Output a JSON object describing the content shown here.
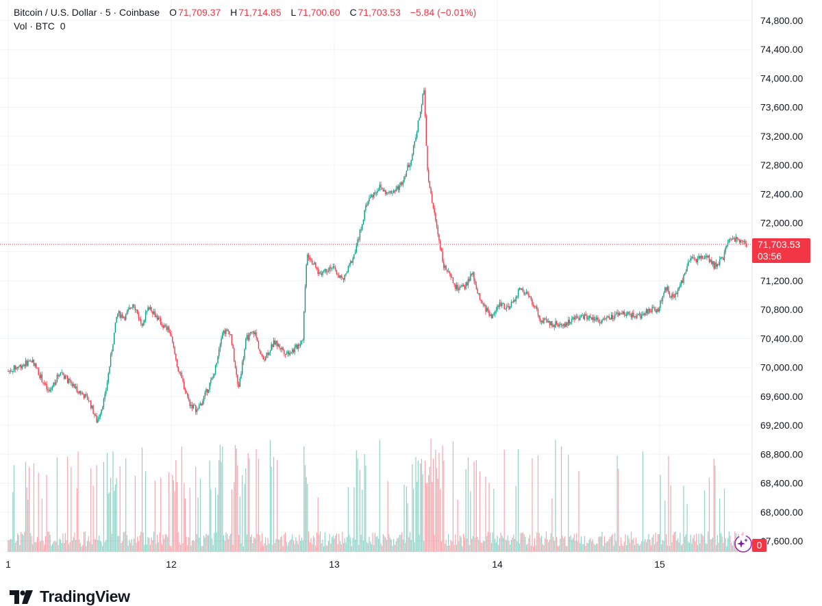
{
  "legend": {
    "symbol": "Bitcoin / U.S. Dollar · 5 · Coinbase",
    "open_label": "O",
    "open": "71,709.37",
    "high_label": "H",
    "high": "71,714.85",
    "low_label": "L",
    "low": "71,700.60",
    "close_label": "C",
    "close": "71,703.53",
    "change": "−5.84 (−0.01%)",
    "volume_label": "Vol · BTC",
    "volume_value": "0"
  },
  "price_badge": {
    "price": "71,703.53",
    "countdown": "03:56"
  },
  "volume_badge": "0",
  "branding": {
    "name": "TradingView",
    "logo_icon": "tradingview-logo-icon"
  },
  "colors": {
    "up": "#089981",
    "down": "#F23645",
    "grid": "#F0F3FA",
    "text": "#131722"
  },
  "chart_data": {
    "type": "candlestick",
    "title": "Bitcoin / U.S. Dollar · 5 · Coinbase",
    "y_ticks": [
      "74,800.00",
      "74,400.00",
      "74,000.00",
      "73,600.00",
      "73,200.00",
      "72,800.00",
      "72,400.00",
      "72,000.00",
      "71,600.00",
      "71,200.00",
      "70,800.00",
      "70,400.00",
      "70,000.00",
      "69,600.00",
      "69,200.00",
      "68,800.00",
      "68,400.00",
      "68,000.00",
      "67,600.00"
    ],
    "x_ticks": [
      "1",
      "12",
      "13",
      "14",
      "15"
    ],
    "ylim": [
      67600,
      74800
    ],
    "last_price": 71703.53,
    "approx_close_path": [
      [
        0,
        69950
      ],
      [
        0.3,
        70100
      ],
      [
        0.5,
        69650
      ],
      [
        0.65,
        69950
      ],
      [
        0.75,
        69800
      ],
      [
        1.0,
        69550
      ],
      [
        1.1,
        69250
      ],
      [
        1.2,
        69600
      ],
      [
        1.35,
        70750
      ],
      [
        1.45,
        70700
      ],
      [
        1.55,
        70900
      ],
      [
        1.65,
        70600
      ],
      [
        1.75,
        70850
      ],
      [
        1.9,
        70600
      ],
      [
        2.0,
        70500
      ],
      [
        2.1,
        70000
      ],
      [
        2.25,
        69500
      ],
      [
        2.35,
        69400
      ],
      [
        2.55,
        69900
      ],
      [
        2.65,
        70500
      ],
      [
        2.75,
        70500
      ],
      [
        2.85,
        69700
      ],
      [
        2.95,
        70400
      ],
      [
        3.05,
        70500
      ],
      [
        3.15,
        70100
      ],
      [
        3.3,
        70350
      ],
      [
        3.45,
        70200
      ],
      [
        3.55,
        70250
      ],
      [
        3.65,
        70400
      ],
      [
        3.7,
        71600
      ],
      [
        3.85,
        71300
      ],
      [
        4.0,
        71400
      ],
      [
        4.15,
        71200
      ],
      [
        4.3,
        71600
      ],
      [
        4.45,
        72300
      ],
      [
        4.6,
        72500
      ],
      [
        4.7,
        72400
      ],
      [
        4.85,
        72500
      ],
      [
        5.0,
        72900
      ],
      [
        5.1,
        73500
      ],
      [
        5.15,
        73850
      ],
      [
        5.2,
        72600
      ],
      [
        5.3,
        72000
      ],
      [
        5.4,
        71400
      ],
      [
        5.55,
        71100
      ],
      [
        5.65,
        71100
      ],
      [
        5.75,
        71300
      ],
      [
        5.85,
        70900
      ],
      [
        6.0,
        70700
      ],
      [
        6.1,
        70900
      ],
      [
        6.2,
        70800
      ],
      [
        6.35,
        71100
      ],
      [
        6.5,
        70900
      ],
      [
        6.6,
        70650
      ],
      [
        6.75,
        70600
      ],
      [
        6.9,
        70600
      ],
      [
        7.05,
        70700
      ],
      [
        7.2,
        70700
      ],
      [
        7.35,
        70650
      ],
      [
        7.5,
        70700
      ],
      [
        7.65,
        70750
      ],
      [
        7.8,
        70700
      ],
      [
        7.95,
        70800
      ],
      [
        8.05,
        70800
      ],
      [
        8.15,
        71100
      ],
      [
        8.25,
        70950
      ],
      [
        8.35,
        71200
      ],
      [
        8.45,
        71500
      ],
      [
        8.55,
        71500
      ],
      [
        8.65,
        71550
      ],
      [
        8.75,
        71400
      ],
      [
        8.85,
        71500
      ],
      [
        8.95,
        71800
      ],
      [
        9.05,
        71750
      ],
      [
        9.15,
        71700
      ]
    ]
  }
}
